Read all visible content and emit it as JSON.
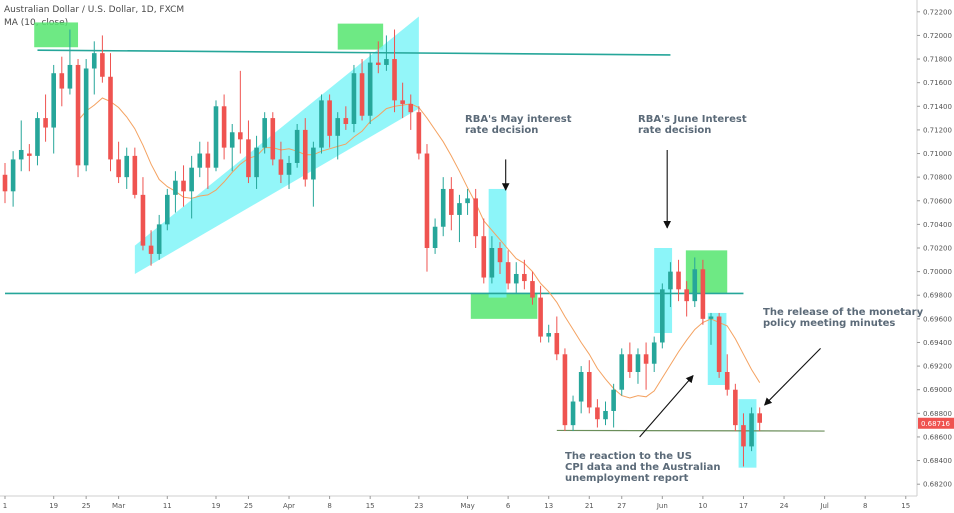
{
  "header": {
    "title": "Australian Dollar / U.S. Dollar, 1D, FXCM",
    "indicator": "MA (10, close)"
  },
  "colors": {
    "up": "#26a69a",
    "down": "#ef5350",
    "ma": "#f4a261",
    "line": "#26a69a",
    "cyan_fill": "#6ff3f7",
    "green_fill": "#55e56f",
    "support": "#6b8e5a",
    "price_tag": "#ef5350"
  },
  "annotations": [
    {
      "id": "may",
      "lines": [
        "RBA's May interest",
        "rate decision"
      ]
    },
    {
      "id": "june",
      "lines": [
        "RBA's June Interest",
        "rate decision"
      ]
    },
    {
      "id": "minutes",
      "lines": [
        "The release of the monetary",
        "policy meeting minutes"
      ]
    },
    {
      "id": "cpi",
      "lines": [
        "The reaction to the US",
        "CPI data and the Australian",
        "unemployment report"
      ]
    }
  ],
  "last_price": "0.68716",
  "chart_data": {
    "type": "candlestick",
    "title": "Australian Dollar / U.S. Dollar, 1D, FXCM",
    "xlabel": "",
    "ylabel": "",
    "ylim": [
      0.681,
      0.723
    ],
    "y_ticks": [
      "0.72200",
      "0.72000",
      "0.71800",
      "0.71600",
      "0.71400",
      "0.71200",
      "0.71000",
      "0.70800",
      "0.70600",
      "0.70400",
      "0.70200",
      "0.70000",
      "0.69800",
      "0.69600",
      "0.69400",
      "0.69200",
      "0.69000",
      "0.68800",
      "0.68600",
      "0.68400",
      "0.68200"
    ],
    "x_ticks": [
      {
        "label": "1",
        "index": 0
      },
      {
        "label": "19",
        "index": 6
      },
      {
        "label": "25",
        "index": 10
      },
      {
        "label": "Mar",
        "index": 14
      },
      {
        "label": "11",
        "index": 20
      },
      {
        "label": "19",
        "index": 26
      },
      {
        "label": "25",
        "index": 30
      },
      {
        "label": "Apr",
        "index": 35
      },
      {
        "label": "8",
        "index": 40
      },
      {
        "label": "15",
        "index": 45
      },
      {
        "label": "23",
        "index": 51
      },
      {
        "label": "May",
        "index": 57
      },
      {
        "label": "6",
        "index": 62
      },
      {
        "label": "13",
        "index": 67
      },
      {
        "label": "21",
        "index": 72
      },
      {
        "label": "27",
        "index": 76
      },
      {
        "label": "Jun",
        "index": 81
      },
      {
        "label": "10",
        "index": 86
      },
      {
        "label": "17",
        "index": 91
      },
      {
        "label": "24",
        "index": 96
      },
      {
        "label": "Jul",
        "index": 101
      },
      {
        "label": "8",
        "index": 106
      },
      {
        "label": "15",
        "index": 111
      }
    ],
    "candles": [
      [
        0.7082,
        0.7092,
        0.7058,
        0.7068
      ],
      [
        0.7068,
        0.7102,
        0.7055,
        0.7095
      ],
      [
        0.7095,
        0.7128,
        0.7085,
        0.7103
      ],
      [
        0.71,
        0.7108,
        0.7085,
        0.7098
      ],
      [
        0.7098,
        0.7135,
        0.709,
        0.713
      ],
      [
        0.713,
        0.715,
        0.711,
        0.7122
      ],
      [
        0.7122,
        0.7175,
        0.71,
        0.7168
      ],
      [
        0.7168,
        0.7182,
        0.714,
        0.7155
      ],
      [
        0.7155,
        0.7205,
        0.715,
        0.7175
      ],
      [
        0.7175,
        0.718,
        0.708,
        0.709
      ],
      [
        0.709,
        0.718,
        0.7085,
        0.7172
      ],
      [
        0.7172,
        0.7195,
        0.715,
        0.7185
      ],
      [
        0.7185,
        0.72,
        0.716,
        0.7165
      ],
      [
        0.7165,
        0.7185,
        0.7085,
        0.7095
      ],
      [
        0.7095,
        0.711,
        0.7075,
        0.708
      ],
      [
        0.708,
        0.7105,
        0.707,
        0.7098
      ],
      [
        0.7098,
        0.7105,
        0.7062,
        0.7065
      ],
      [
        0.7065,
        0.708,
        0.7018,
        0.7022
      ],
      [
        0.7022,
        0.7035,
        0.7005,
        0.7015
      ],
      [
        0.7015,
        0.7048,
        0.701,
        0.704
      ],
      [
        0.704,
        0.707,
        0.7035,
        0.7065
      ],
      [
        0.7065,
        0.7085,
        0.705,
        0.7077
      ],
      [
        0.7077,
        0.709,
        0.7055,
        0.7068
      ],
      [
        0.7068,
        0.7098,
        0.7045,
        0.7088
      ],
      [
        0.7088,
        0.711,
        0.708,
        0.71
      ],
      [
        0.71,
        0.711,
        0.707,
        0.7088
      ],
      [
        0.7088,
        0.7145,
        0.7085,
        0.714
      ],
      [
        0.714,
        0.715,
        0.7095,
        0.7105
      ],
      [
        0.7105,
        0.7125,
        0.7085,
        0.7118
      ],
      [
        0.7118,
        0.717,
        0.71,
        0.7112
      ],
      [
        0.7112,
        0.7128,
        0.7075,
        0.708
      ],
      [
        0.708,
        0.7115,
        0.707,
        0.7105
      ],
      [
        0.7105,
        0.7135,
        0.71,
        0.713
      ],
      [
        0.713,
        0.7135,
        0.709,
        0.7095
      ],
      [
        0.7095,
        0.711,
        0.7075,
        0.7082
      ],
      [
        0.7082,
        0.7098,
        0.707,
        0.7092
      ],
      [
        0.7092,
        0.7125,
        0.7088,
        0.712
      ],
      [
        0.712,
        0.713,
        0.7072,
        0.7078
      ],
      [
        0.7078,
        0.711,
        0.7055,
        0.7105
      ],
      [
        0.7105,
        0.715,
        0.71,
        0.7145
      ],
      [
        0.7145,
        0.715,
        0.7105,
        0.7115
      ],
      [
        0.7115,
        0.7135,
        0.7095,
        0.713
      ],
      [
        0.713,
        0.714,
        0.712,
        0.7125
      ],
      [
        0.7125,
        0.7175,
        0.7118,
        0.7168
      ],
      [
        0.7168,
        0.718,
        0.7128,
        0.7132
      ],
      [
        0.7132,
        0.7185,
        0.7125,
        0.7177
      ],
      [
        0.7177,
        0.7195,
        0.7168,
        0.7175
      ],
      [
        0.7175,
        0.72,
        0.717,
        0.718
      ],
      [
        0.718,
        0.7205,
        0.7135,
        0.7145
      ],
      [
        0.7145,
        0.716,
        0.713,
        0.7142
      ],
      [
        0.7142,
        0.715,
        0.712,
        0.7135
      ],
      [
        0.7135,
        0.714,
        0.7095,
        0.71
      ],
      [
        0.71,
        0.7108,
        0.7,
        0.702
      ],
      [
        0.702,
        0.7045,
        0.7015,
        0.7038
      ],
      [
        0.7038,
        0.708,
        0.703,
        0.707
      ],
      [
        0.707,
        0.708,
        0.7035,
        0.7048
      ],
      [
        0.7048,
        0.7065,
        0.7025,
        0.7058
      ],
      [
        0.7058,
        0.707,
        0.7048,
        0.7062
      ],
      [
        0.7062,
        0.707,
        0.702,
        0.703
      ],
      [
        0.703,
        0.7045,
        0.699,
        0.6995
      ],
      [
        0.6995,
        0.703,
        0.699,
        0.702
      ],
      [
        0.702,
        0.7025,
        0.6998,
        0.7008
      ],
      [
        0.7008,
        0.7018,
        0.6985,
        0.699
      ],
      [
        0.699,
        0.7008,
        0.6982,
        0.6998
      ],
      [
        0.6998,
        0.701,
        0.6985,
        0.6992
      ],
      [
        0.6992,
        0.7,
        0.6972,
        0.6978
      ],
      [
        0.6978,
        0.6988,
        0.694,
        0.6945
      ],
      [
        0.6945,
        0.6955,
        0.694,
        0.6948
      ],
      [
        0.6948,
        0.6962,
        0.6925,
        0.693
      ],
      [
        0.693,
        0.6935,
        0.6865,
        0.687
      ],
      [
        0.687,
        0.6895,
        0.6865,
        0.689
      ],
      [
        0.689,
        0.692,
        0.688,
        0.6915
      ],
      [
        0.6915,
        0.6925,
        0.688,
        0.6885
      ],
      [
        0.6885,
        0.6892,
        0.6868,
        0.6875
      ],
      [
        0.6875,
        0.689,
        0.687,
        0.6882
      ],
      [
        0.6882,
        0.6905,
        0.6868,
        0.69
      ],
      [
        0.69,
        0.6935,
        0.6895,
        0.693
      ],
      [
        0.693,
        0.694,
        0.691,
        0.6915
      ],
      [
        0.6915,
        0.6935,
        0.6905,
        0.693
      ],
      [
        0.693,
        0.694,
        0.69,
        0.6922
      ],
      [
        0.6922,
        0.6945,
        0.6915,
        0.694
      ],
      [
        0.694,
        0.699,
        0.6935,
        0.6985
      ],
      [
        0.6985,
        0.7008,
        0.697,
        0.7
      ],
      [
        0.7,
        0.701,
        0.6975,
        0.6985
      ],
      [
        0.6985,
        0.6992,
        0.6962,
        0.6975
      ],
      [
        0.6975,
        0.7012,
        0.697,
        0.7002
      ],
      [
        0.7002,
        0.701,
        0.6955,
        0.696
      ],
      [
        0.696,
        0.6965,
        0.6938,
        0.6962
      ],
      [
        0.6962,
        0.6965,
        0.691,
        0.6915
      ],
      [
        0.6915,
        0.693,
        0.6895,
        0.69
      ],
      [
        0.69,
        0.6905,
        0.6865,
        0.687
      ],
      [
        0.687,
        0.688,
        0.6835,
        0.6852
      ],
      [
        0.6852,
        0.6885,
        0.6848,
        0.688
      ],
      [
        0.688,
        0.6885,
        0.6865,
        0.6872
      ]
    ],
    "series": [
      {
        "name": "MA (10, close)",
        "values": [
          null,
          null,
          null,
          null,
          null,
          null,
          null,
          null,
          null,
          0.7128,
          0.7136,
          0.7141,
          0.7147,
          0.7144,
          0.7139,
          0.7131,
          0.7121,
          0.7107,
          0.7091,
          0.7078,
          0.7072,
          0.7068,
          0.7063,
          0.7062,
          0.7064,
          0.7065,
          0.7069,
          0.7076,
          0.7084,
          0.7091,
          0.7096,
          0.7098,
          0.7105,
          0.7105,
          0.7103,
          0.7104,
          0.7102,
          0.7099,
          0.7099,
          0.7102,
          0.7104,
          0.7106,
          0.7108,
          0.7114,
          0.7119,
          0.7127,
          0.7132,
          0.7138,
          0.714,
          0.7141,
          0.7142,
          0.7139,
          0.713,
          0.712,
          0.711,
          0.7098,
          0.7085,
          0.7071,
          0.7058,
          0.7043,
          0.7035,
          0.7027,
          0.7019,
          0.7011,
          0.7007,
          0.7,
          0.699,
          0.6983,
          0.6974,
          0.6962,
          0.6951,
          0.694,
          0.693,
          0.6918,
          0.6909,
          0.6901,
          0.6895,
          0.6893,
          0.6895,
          0.6894,
          0.6899,
          0.691,
          0.6921,
          0.6932,
          0.6942,
          0.6951,
          0.6957,
          0.696,
          0.6957,
          0.6954,
          0.6943,
          0.693,
          0.6917,
          0.6906
        ]
      }
    ],
    "lines": [
      {
        "name": "resistance-top",
        "x": [
          4,
          82
        ],
        "y": [
          0.71875,
          0.71835
        ]
      },
      {
        "name": "support-middle",
        "x": [
          0,
          91
        ],
        "y": [
          0.69815,
          0.69815
        ]
      },
      {
        "name": "support-bottom",
        "x": [
          68,
          101
        ],
        "y": [
          0.68655,
          0.6865
        ]
      }
    ],
    "channel": {
      "lower_start": [
        16,
        0.6998
      ],
      "lower_end": [
        51,
        0.7138
      ],
      "upper_start": [
        16,
        0.7022
      ],
      "upper_end": [
        51,
        0.7216
      ]
    },
    "boxes": [
      {
        "color": "green",
        "x": [
          3.6,
          9.0
        ],
        "y": [
          0.719,
          0.7211
        ]
      },
      {
        "color": "green",
        "x": [
          41.0,
          46.6
        ],
        "y": [
          0.7188,
          0.721
        ]
      },
      {
        "color": "green",
        "x": [
          57.4,
          65.6
        ],
        "y": [
          0.696,
          0.6982
        ]
      },
      {
        "color": "green",
        "x": [
          83.9,
          89.0
        ],
        "y": [
          0.6982,
          0.7018
        ]
      },
      {
        "color": "cyan",
        "x": [
          59.6,
          61.8
        ],
        "y": [
          0.6978,
          0.707
        ]
      },
      {
        "color": "cyan",
        "x": [
          80.0,
          82.2
        ],
        "y": [
          0.6948,
          0.702
        ]
      },
      {
        "color": "cyan",
        "x": [
          86.6,
          88.9
        ],
        "y": [
          0.6904,
          0.6965
        ]
      },
      {
        "color": "cyan",
        "x": [
          90.4,
          92.6
        ],
        "y": [
          0.6834,
          0.6892
        ]
      }
    ],
    "arrows": [
      {
        "id": "may",
        "from": [
          61.7,
          0.7095
        ],
        "to": [
          61.7,
          0.7069
        ]
      },
      {
        "id": "june",
        "from": [
          81.6,
          0.7103
        ],
        "to": [
          81.6,
          0.7037
        ]
      },
      {
        "id": "minutes",
        "from": [
          100.5,
          0.6935
        ],
        "to": [
          93.6,
          0.6887
        ]
      },
      {
        "id": "cpi",
        "from": [
          78.2,
          0.686
        ],
        "to": [
          84.8,
          0.6912
        ]
      }
    ]
  }
}
